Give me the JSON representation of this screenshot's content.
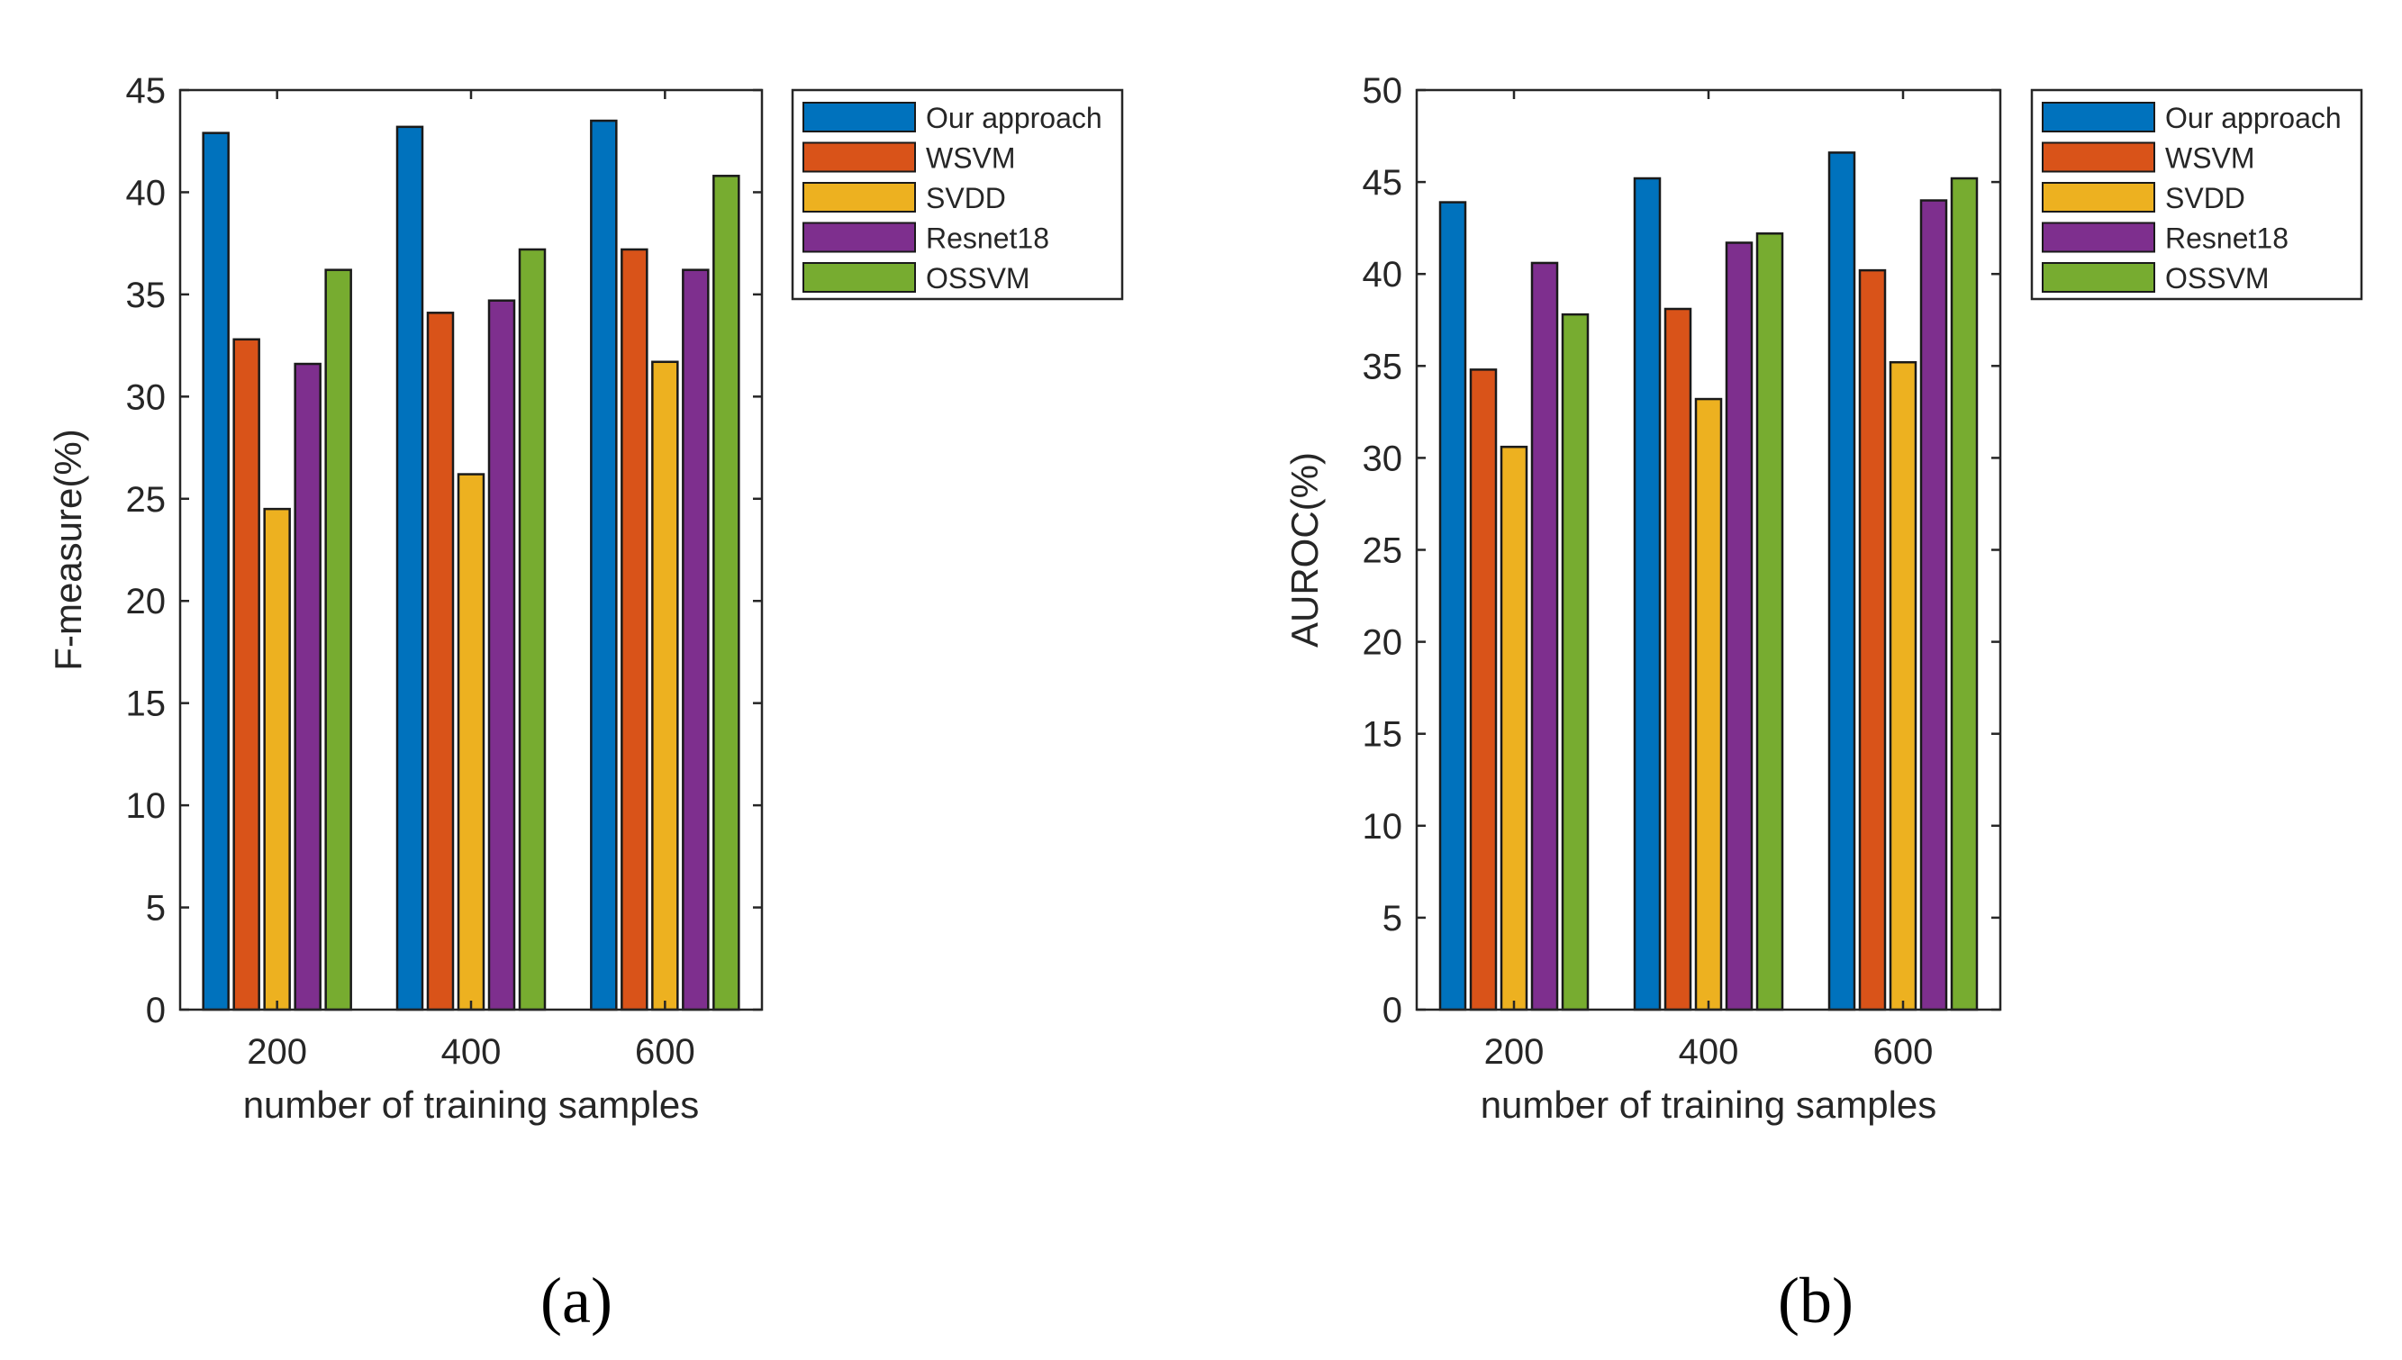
{
  "chart_data": [
    {
      "type": "bar",
      "panel_label": "(a)",
      "title": "",
      "xlabel": "number of training samples",
      "ylabel": "F-measure(%)",
      "categories": [
        "200",
        "400",
        "600"
      ],
      "ylim": [
        0,
        45
      ],
      "yticks": [
        0,
        5,
        10,
        15,
        20,
        25,
        30,
        35,
        40,
        45
      ],
      "grid": false,
      "legend_position": "outside-top-right",
      "series": [
        {
          "name": "Our approach",
          "color": "#0072BD",
          "values": [
            42.9,
            43.2,
            43.5
          ]
        },
        {
          "name": "WSVM",
          "color": "#D95319",
          "values": [
            32.8,
            34.1,
            37.2
          ]
        },
        {
          "name": "SVDD",
          "color": "#EDB120",
          "values": [
            24.5,
            26.2,
            31.7
          ]
        },
        {
          "name": "Resnet18",
          "color": "#7E2F8E",
          "values": [
            31.6,
            34.7,
            36.2
          ]
        },
        {
          "name": "OSSVM",
          "color": "#77AC30",
          "values": [
            36.2,
            37.2,
            40.8
          ]
        }
      ]
    },
    {
      "type": "bar",
      "panel_label": "(b)",
      "title": "",
      "xlabel": "number of training samples",
      "ylabel": "AUROC(%)",
      "categories": [
        "200",
        "400",
        "600"
      ],
      "ylim": [
        0,
        50
      ],
      "yticks": [
        0,
        5,
        10,
        15,
        20,
        25,
        30,
        35,
        40,
        45,
        50
      ],
      "grid": false,
      "legend_position": "outside-top-right",
      "series": [
        {
          "name": "Our approach",
          "color": "#0072BD",
          "values": [
            43.9,
            45.2,
            46.6
          ]
        },
        {
          "name": "WSVM",
          "color": "#D95319",
          "values": [
            34.8,
            38.1,
            40.2
          ]
        },
        {
          "name": "SVDD",
          "color": "#EDB120",
          "values": [
            30.6,
            33.2,
            35.2
          ]
        },
        {
          "name": "Resnet18",
          "color": "#7E2F8E",
          "values": [
            40.6,
            41.7,
            44.0
          ]
        },
        {
          "name": "OSSVM",
          "color": "#77AC30",
          "values": [
            37.8,
            42.2,
            45.2
          ]
        }
      ]
    }
  ]
}
